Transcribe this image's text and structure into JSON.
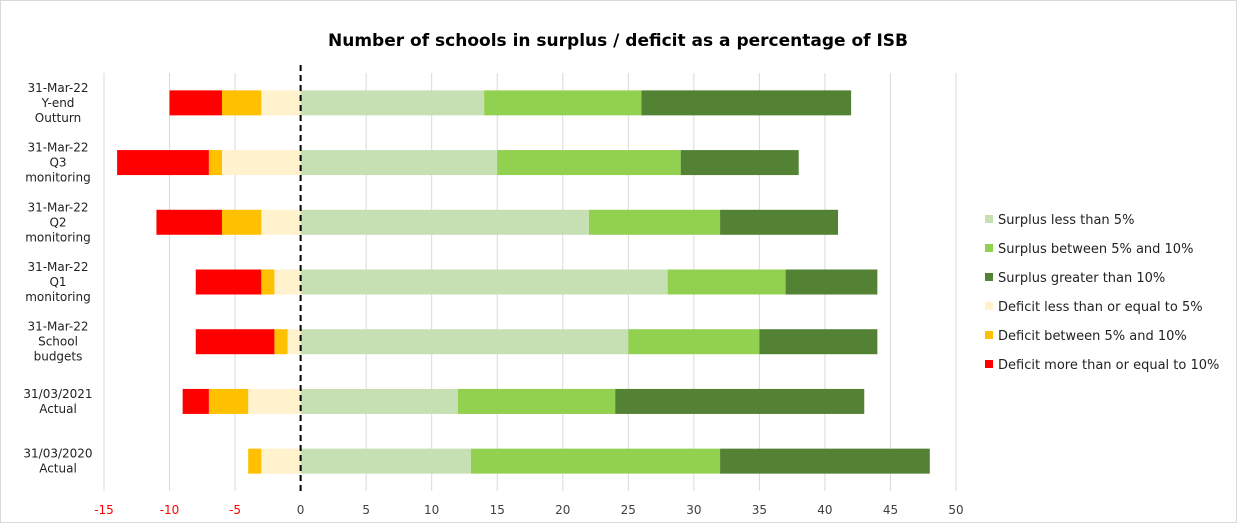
{
  "chart_data": {
    "type": "bar",
    "orientation": "horizontal",
    "stacked": true,
    "title": "Number of schools in surplus / deficit as a percentage of ISB",
    "xlabel": "",
    "ylabel": "",
    "xlim": [
      -15,
      50
    ],
    "x_ticks": [
      -15,
      -10,
      -5,
      0,
      5,
      10,
      15,
      20,
      25,
      30,
      35,
      40,
      45,
      50
    ],
    "negative_tick_color": "#ff0000",
    "grid": true,
    "legend_position": "right",
    "categories": [
      [
        "31-Mar-22",
        "Y-end",
        "Outturn"
      ],
      [
        "31-Mar-22",
        "Q3",
        "monitoring"
      ],
      [
        "31-Mar-22",
        "Q2",
        "monitoring"
      ],
      [
        "31-Mar-22",
        "Q1",
        "monitoring"
      ],
      [
        "31-Mar-22",
        "School",
        "budgets"
      ],
      [
        "31/03/2021",
        "Actual"
      ],
      [
        "31/03/2020",
        "Actual"
      ]
    ],
    "series": [
      {
        "name": "Surplus less than 5%",
        "color": "#c6e0b4",
        "side": "positive",
        "values": [
          14,
          15,
          22,
          28,
          25,
          12,
          13
        ]
      },
      {
        "name": "Surplus between 5% and 10%",
        "color": "#92d050",
        "side": "positive",
        "values": [
          12,
          14,
          10,
          9,
          10,
          12,
          19
        ]
      },
      {
        "name": "Surplus greater than 10%",
        "color": "#548235",
        "side": "positive",
        "values": [
          16,
          9,
          9,
          7,
          9,
          19,
          16
        ]
      },
      {
        "name": "Deficit less than or equal to 5%",
        "color": "#fff2cc",
        "side": "negative",
        "values": [
          3,
          6,
          3,
          2,
          1,
          4,
          3
        ]
      },
      {
        "name": "Deficit between 5% and 10%",
        "color": "#ffc000",
        "side": "negative",
        "values": [
          3,
          1,
          3,
          1,
          1,
          3,
          1
        ]
      },
      {
        "name": "Deficit more than or equal to 10%",
        "color": "#ff0000",
        "side": "negative",
        "values": [
          4,
          7,
          5,
          5,
          6,
          2,
          0
        ]
      }
    ]
  }
}
